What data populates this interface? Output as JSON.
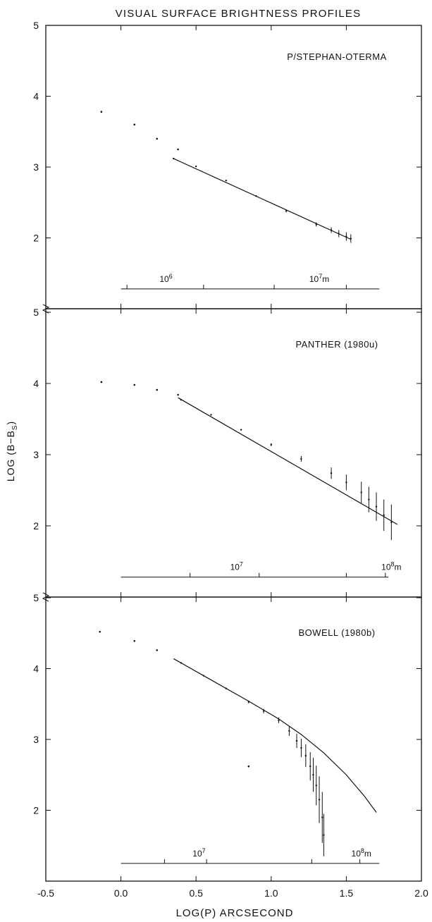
{
  "figure": {
    "title": "VISUAL SURFACE BRIGHTNESS PROFILES",
    "xlabel": "LOG(P) ARCSECOND",
    "ylabel": "LOG (B−B",
    "ylabel_sub": "S",
    "ylabel_close": ")"
  },
  "chart_data": [
    {
      "type": "scatter",
      "title": "P/STEPHAN-OTERMA",
      "xlabel": "LOG(P) ARCSECOND",
      "ylabel": "LOG (B−B_S)",
      "xlim": [
        -0.5,
        2.0
      ],
      "ylim": [
        1.0,
        5.0
      ],
      "y_ticks": [
        2,
        3,
        4,
        5
      ],
      "y_tick_labels": [
        "2",
        "3",
        "4",
        "5"
      ],
      "series": [
        {
          "kind": "points",
          "x": [
            -0.13,
            0.09,
            0.24,
            0.38
          ],
          "y": [
            3.78,
            3.6,
            3.4,
            3.25
          ]
        },
        {
          "kind": "data_with_errors",
          "x": [
            0.35,
            0.5,
            0.7,
            0.9,
            1.1,
            1.3,
            1.4,
            1.45,
            1.5,
            1.53
          ],
          "y": [
            3.12,
            3.01,
            2.81,
            2.59,
            2.38,
            2.19,
            2.11,
            2.06,
            2.02,
            1.99
          ],
          "err": [
            0.0,
            0.0,
            0.01,
            0.01,
            0.02,
            0.03,
            0.04,
            0.05,
            0.06,
            0.06
          ]
        },
        {
          "kind": "fit_line",
          "x": [
            0.35,
            1.53
          ],
          "y": [
            3.12,
            1.98
          ]
        }
      ],
      "scale_bar": {
        "x_range": [
          0.0,
          1.72
        ],
        "y": 1.28,
        "ticks_x": [
          0.04,
          0.55,
          1.02,
          1.5
        ],
        "labels": [
          {
            "base": "10",
            "exp": "6",
            "unit": "",
            "x": 0.3
          },
          {
            "base": "10",
            "exp": "7",
            "unit": "m",
            "x": 1.32
          }
        ]
      }
    },
    {
      "type": "scatter",
      "title": "PANTHER (1980u)",
      "xlabel": "LOG(P) ARCSECOND",
      "ylabel": "LOG (B−B_S)",
      "xlim": [
        -0.5,
        2.0
      ],
      "ylim": [
        1.0,
        5.0
      ],
      "y_ticks": [
        2,
        3,
        4,
        5
      ],
      "y_tick_labels": [
        "2",
        "3",
        "4",
        "5"
      ],
      "series": [
        {
          "kind": "points",
          "x": [
            -0.13,
            0.09,
            0.24,
            0.38
          ],
          "y": [
            4.02,
            3.98,
            3.91,
            3.84
          ]
        },
        {
          "kind": "data_with_errors",
          "x": [
            0.4,
            0.6,
            0.8,
            1.0,
            1.2,
            1.4,
            1.5,
            1.6,
            1.65,
            1.7,
            1.75,
            1.8
          ],
          "y": [
            3.77,
            3.56,
            3.35,
            3.14,
            2.94,
            2.74,
            2.61,
            2.47,
            2.37,
            2.27,
            2.15,
            2.05
          ],
          "err": [
            0.0,
            0.01,
            0.01,
            0.02,
            0.04,
            0.08,
            0.11,
            0.15,
            0.18,
            0.2,
            0.22,
            0.25
          ]
        },
        {
          "kind": "fit_line",
          "x": [
            0.38,
            1.84
          ],
          "y": [
            3.8,
            2.02
          ]
        }
      ],
      "scale_bar": {
        "x_range": [
          0.0,
          1.78
        ],
        "y": 1.28,
        "ticks_x": [
          0.46,
          0.92,
          1.5,
          1.76
        ],
        "labels": [
          {
            "base": "10",
            "exp": "7",
            "unit": "",
            "x": 0.77
          },
          {
            "base": "10",
            "exp": "8",
            "unit": "m",
            "x": 1.8
          }
        ]
      }
    },
    {
      "type": "scatter",
      "title": "BOWELL (1980b)",
      "xlabel": "LOG(P) ARCSECOND",
      "ylabel": "LOG (B−B_S)",
      "xlim": [
        -0.5,
        2.0
      ],
      "ylim": [
        1.0,
        5.0
      ],
      "y_ticks": [
        2,
        3,
        4,
        5
      ],
      "y_tick_labels": [
        "2",
        "3",
        "4",
        "5"
      ],
      "x_ticks": [
        -0.5,
        0.0,
        0.5,
        1.0,
        1.5,
        2.0
      ],
      "x_tick_labels": [
        "-0.5",
        "0.0",
        "0.5",
        "1.0",
        "1.5",
        "2.0"
      ],
      "series": [
        {
          "kind": "points",
          "x": [
            -0.14,
            0.09,
            0.24,
            0.85
          ],
          "y": [
            4.52,
            4.39,
            4.26,
            2.62
          ]
        },
        {
          "kind": "data_with_errors",
          "x": [
            0.4,
            0.55,
            0.7,
            0.85,
            0.95,
            1.05,
            1.12,
            1.17,
            1.2,
            1.23,
            1.26,
            1.28,
            1.3,
            1.32,
            1.34,
            1.35
          ],
          "y": [
            4.08,
            3.9,
            3.72,
            3.53,
            3.4,
            3.27,
            3.12,
            2.98,
            2.88,
            2.77,
            2.62,
            2.5,
            2.35,
            2.15,
            1.9,
            1.65
          ],
          "err": [
            0.0,
            0.01,
            0.01,
            0.02,
            0.03,
            0.04,
            0.07,
            0.1,
            0.13,
            0.16,
            0.2,
            0.24,
            0.28,
            0.33,
            0.36,
            0.3
          ]
        },
        {
          "kind": "fit_line",
          "x": [
            0.35,
            0.6,
            0.85,
            1.05,
            1.2,
            1.35,
            1.5,
            1.62,
            1.7
          ],
          "y": [
            4.14,
            3.84,
            3.54,
            3.29,
            3.07,
            2.81,
            2.5,
            2.2,
            1.97
          ]
        }
      ],
      "scale_bar": {
        "x_range": [
          0.0,
          1.72
        ],
        "y": 1.25,
        "ticks_x": [
          0.29,
          0.57,
          1.27,
          1.59
        ],
        "labels": [
          {
            "base": "10",
            "exp": "7",
            "unit": "",
            "x": 0.52
          },
          {
            "base": "10",
            "exp": "8",
            "unit": "m",
            "x": 1.6
          }
        ]
      }
    }
  ]
}
